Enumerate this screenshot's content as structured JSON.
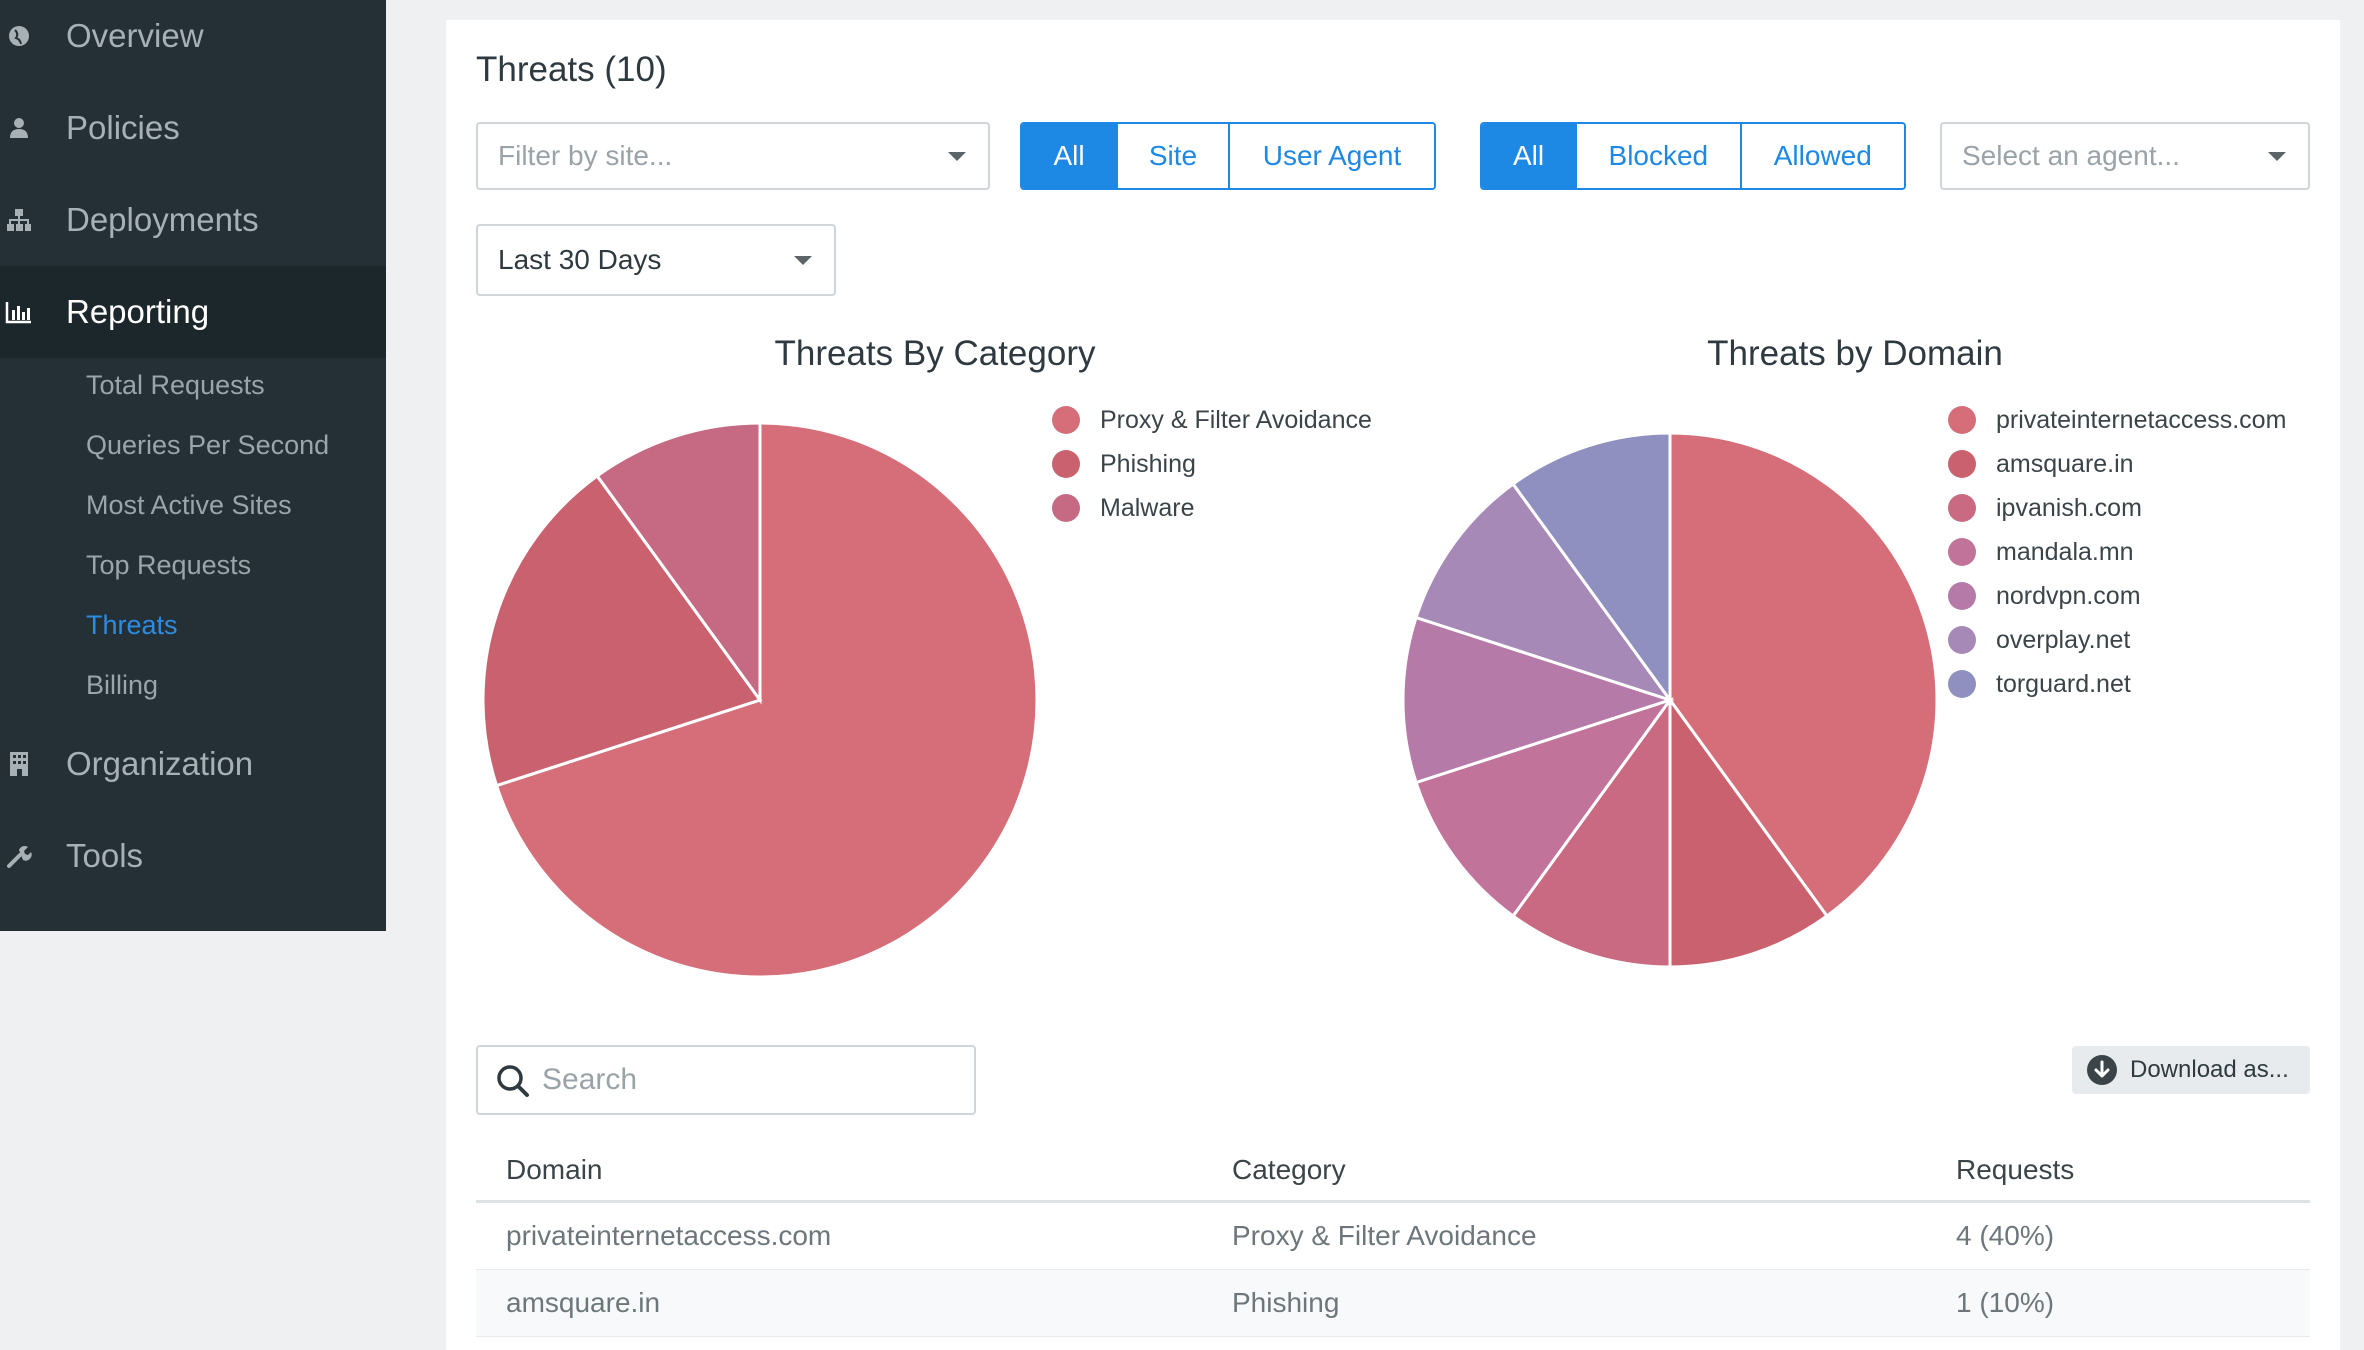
{
  "sidebar": {
    "items": [
      {
        "label": "Overview",
        "icon": "globe-icon"
      },
      {
        "label": "Policies",
        "icon": "user-icon"
      },
      {
        "label": "Deployments",
        "icon": "sitemap-icon"
      },
      {
        "label": "Reporting",
        "icon": "bar-chart-icon"
      },
      {
        "label": "Organization",
        "icon": "building-icon"
      },
      {
        "label": "Tools",
        "icon": "wrench-icon"
      }
    ],
    "reporting_sub": [
      "Total Requests",
      "Queries Per Second",
      "Most Active Sites",
      "Top Requests",
      "Threats",
      "Billing"
    ],
    "active_sub": "Threats"
  },
  "main": {
    "title": "Threats (10)",
    "site_filter_placeholder": "Filter by site...",
    "scope_buttons": [
      "All",
      "Site",
      "User Agent"
    ],
    "status_buttons": [
      "All",
      "Blocked",
      "Allowed"
    ],
    "agent_placeholder": "Select an agent...",
    "range_value": "Last 30 Days",
    "search_placeholder": "Search",
    "download_label": "Download as..."
  },
  "chart_data": [
    {
      "type": "pie",
      "title": "Threats By Category",
      "labels": [
        "Proxy & Filter Avoidance",
        "Phishing",
        "Malware"
      ],
      "values": [
        7,
        2,
        1
      ],
      "colors": [
        "#d66e79",
        "#c9626e",
        "#c56a82"
      ]
    },
    {
      "type": "pie",
      "title": "Threats by Domain",
      "labels": [
        "privateinternetaccess.com",
        "amsquare.in",
        "ipvanish.com",
        "mandala.mn",
        "nordvpn.com",
        "overplay.net",
        "torguard.net"
      ],
      "values": [
        4,
        1,
        1,
        1,
        1,
        1,
        1
      ],
      "colors": [
        "#d66e79",
        "#c9626e",
        "#c96a82",
        "#c2739a",
        "#b57aa8",
        "#a689b7",
        "#9090c0"
      ]
    }
  ],
  "table": {
    "headers": [
      "Domain",
      "Category",
      "Requests"
    ],
    "rows": [
      [
        "privateinternetaccess.com",
        "Proxy & Filter Avoidance",
        "4 (40%)"
      ],
      [
        "amsquare.in",
        "Phishing",
        "1 (10%)"
      ]
    ]
  }
}
